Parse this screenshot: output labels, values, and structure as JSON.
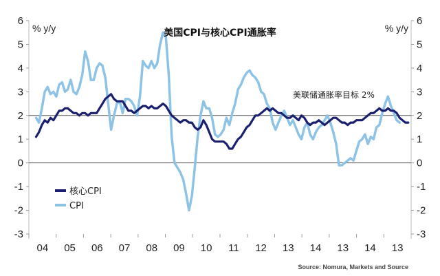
{
  "chart_data": {
    "type": "line",
    "title": "美国CPI与核心CPI通胀率",
    "unit_left": "% y/y",
    "unit_right": "% y/y",
    "ylim": [
      -3,
      6
    ],
    "y_ticks": [
      "6",
      "5",
      "4",
      "3",
      "2",
      "1",
      "0",
      "-1",
      "-2",
      "-3"
    ],
    "x_tick_labels": [
      "04",
      "05",
      "06",
      "07",
      "08",
      "09",
      "10",
      "11",
      "12",
      "13",
      "14",
      "13",
      "14",
      "13"
    ],
    "target_line": {
      "value": 2,
      "label": "美联储通胀率目标 2%"
    },
    "source": "Source: Nomura, Markets and Source",
    "legend": [
      {
        "name": "核心CPI",
        "color": "#1a1f6e"
      },
      {
        "name": "CPI",
        "color": "#8ec3e6"
      }
    ],
    "series": [
      {
        "name": "CPI",
        "color": "#8ec3e6",
        "points": [
          [
            2004.0,
            1.9
          ],
          [
            2004.1,
            1.7
          ],
          [
            2004.2,
            2.3
          ],
          [
            2004.3,
            3.0
          ],
          [
            2004.4,
            3.2
          ],
          [
            2004.5,
            2.9
          ],
          [
            2004.6,
            3.0
          ],
          [
            2004.7,
            2.8
          ],
          [
            2004.8,
            3.3
          ],
          [
            2004.9,
            3.4
          ],
          [
            2005.0,
            3.0
          ],
          [
            2005.1,
            3.1
          ],
          [
            2005.2,
            3.5
          ],
          [
            2005.3,
            3.0
          ],
          [
            2005.4,
            2.9
          ],
          [
            2005.5,
            3.2
          ],
          [
            2005.6,
            3.7
          ],
          [
            2005.7,
            4.7
          ],
          [
            2005.8,
            4.3
          ],
          [
            2005.9,
            3.5
          ],
          [
            2006.0,
            3.5
          ],
          [
            2006.1,
            4.0
          ],
          [
            2006.2,
            4.2
          ],
          [
            2006.3,
            4.1
          ],
          [
            2006.4,
            3.6
          ],
          [
            2006.5,
            2.5
          ],
          [
            2006.6,
            1.4
          ],
          [
            2006.7,
            2.0
          ],
          [
            2006.8,
            2.5
          ],
          [
            2006.9,
            2.6
          ],
          [
            2007.0,
            2.1
          ],
          [
            2007.1,
            2.7
          ],
          [
            2007.2,
            2.7
          ],
          [
            2007.3,
            2.6
          ],
          [
            2007.4,
            2.4
          ],
          [
            2007.5,
            2.0
          ],
          [
            2007.6,
            2.8
          ],
          [
            2007.7,
            4.3
          ],
          [
            2007.8,
            4.1
          ],
          [
            2007.9,
            4.0
          ],
          [
            2008.0,
            4.3
          ],
          [
            2008.1,
            4.0
          ],
          [
            2008.2,
            4.2
          ],
          [
            2008.3,
            5.0
          ],
          [
            2008.4,
            5.5
          ],
          [
            2008.5,
            5.3
          ],
          [
            2008.6,
            3.7
          ],
          [
            2008.7,
            1.1
          ],
          [
            2008.8,
            0.0
          ],
          [
            2008.9,
            -0.2
          ],
          [
            2009.0,
            -0.4
          ],
          [
            2009.1,
            -0.7
          ],
          [
            2009.2,
            -1.3
          ],
          [
            2009.3,
            -2.0
          ],
          [
            2009.4,
            -1.4
          ],
          [
            2009.5,
            -0.2
          ],
          [
            2009.6,
            1.1
          ],
          [
            2009.7,
            2.0
          ],
          [
            2009.8,
            2.6
          ],
          [
            2009.9,
            2.3
          ],
          [
            2010.0,
            2.3
          ],
          [
            2010.1,
            1.9
          ],
          [
            2010.2,
            1.2
          ],
          [
            2010.3,
            1.1
          ],
          [
            2010.4,
            1.2
          ],
          [
            2010.5,
            1.4
          ],
          [
            2010.6,
            1.9
          ],
          [
            2010.7,
            1.6
          ],
          [
            2010.8,
            2.1
          ],
          [
            2010.9,
            2.5
          ],
          [
            2011.0,
            3.1
          ],
          [
            2011.1,
            3.3
          ],
          [
            2011.2,
            3.6
          ],
          [
            2011.3,
            3.8
          ],
          [
            2011.4,
            3.9
          ],
          [
            2011.5,
            3.7
          ],
          [
            2011.6,
            3.6
          ],
          [
            2011.7,
            3.4
          ],
          [
            2011.8,
            3.0
          ],
          [
            2011.9,
            2.9
          ],
          [
            2012.0,
            2.5
          ],
          [
            2012.1,
            2.3
          ],
          [
            2012.2,
            1.7
          ],
          [
            2012.3,
            1.4
          ],
          [
            2012.4,
            1.7
          ],
          [
            2012.5,
            2.0
          ],
          [
            2012.6,
            2.2
          ],
          [
            2012.7,
            1.9
          ],
          [
            2012.8,
            1.6
          ],
          [
            2012.9,
            1.8
          ],
          [
            2013.0,
            1.5
          ],
          [
            2013.1,
            1.2
          ],
          [
            2013.2,
            1.0
          ],
          [
            2013.3,
            1.5
          ],
          [
            2013.4,
            1.7
          ],
          [
            2013.5,
            1.2
          ],
          [
            2013.6,
            1.0
          ],
          [
            2013.7,
            1.3
          ],
          [
            2013.8,
            1.5
          ],
          [
            2013.9,
            1.6
          ],
          [
            2014.0,
            1.8
          ],
          [
            2014.1,
            2.0
          ],
          [
            2014.2,
            1.7
          ],
          [
            2014.3,
            1.3
          ],
          [
            2014.4,
            0.8
          ],
          [
            2014.5,
            -0.1
          ],
          [
            2014.6,
            -0.1
          ],
          [
            2014.7,
            0.0
          ],
          [
            2014.8,
            0.1
          ],
          [
            2014.9,
            0.2
          ],
          [
            2015.0,
            0.1
          ],
          [
            2015.1,
            0.5
          ],
          [
            2015.2,
            0.9
          ],
          [
            2015.3,
            1.0
          ],
          [
            2015.4,
            1.2
          ],
          [
            2015.5,
            0.8
          ],
          [
            2015.6,
            1.1
          ],
          [
            2015.7,
            1.0
          ],
          [
            2015.8,
            1.5
          ],
          [
            2015.9,
            1.6
          ],
          [
            2016.0,
            2.1
          ],
          [
            2016.1,
            2.5
          ],
          [
            2016.2,
            2.8
          ],
          [
            2016.3,
            2.4
          ],
          [
            2016.4,
            2.1
          ],
          [
            2016.5,
            1.8
          ],
          [
            2016.6,
            1.7
          ]
        ]
      },
      {
        "name": "核心CPI",
        "color": "#1a1f6e",
        "points": [
          [
            2004.0,
            1.1
          ],
          [
            2004.1,
            1.3
          ],
          [
            2004.2,
            1.6
          ],
          [
            2004.3,
            1.8
          ],
          [
            2004.4,
            1.7
          ],
          [
            2004.5,
            1.9
          ],
          [
            2004.6,
            1.8
          ],
          [
            2004.7,
            2.0
          ],
          [
            2004.8,
            2.2
          ],
          [
            2004.9,
            2.2
          ],
          [
            2005.0,
            2.3
          ],
          [
            2005.1,
            2.3
          ],
          [
            2005.2,
            2.2
          ],
          [
            2005.3,
            2.1
          ],
          [
            2005.4,
            2.1
          ],
          [
            2005.5,
            2.0
          ],
          [
            2005.6,
            2.1
          ],
          [
            2005.7,
            2.1
          ],
          [
            2005.8,
            2.0
          ],
          [
            2005.9,
            2.1
          ],
          [
            2006.0,
            2.1
          ],
          [
            2006.1,
            2.1
          ],
          [
            2006.2,
            2.3
          ],
          [
            2006.3,
            2.5
          ],
          [
            2006.4,
            2.7
          ],
          [
            2006.5,
            2.8
          ],
          [
            2006.6,
            2.9
          ],
          [
            2006.7,
            2.7
          ],
          [
            2006.8,
            2.6
          ],
          [
            2006.9,
            2.6
          ],
          [
            2007.0,
            2.6
          ],
          [
            2007.1,
            2.4
          ],
          [
            2007.2,
            2.2
          ],
          [
            2007.3,
            2.2
          ],
          [
            2007.4,
            2.1
          ],
          [
            2007.5,
            2.2
          ],
          [
            2007.6,
            2.3
          ],
          [
            2007.7,
            2.4
          ],
          [
            2007.8,
            2.4
          ],
          [
            2007.9,
            2.3
          ],
          [
            2008.0,
            2.4
          ],
          [
            2008.1,
            2.3
          ],
          [
            2008.2,
            2.3
          ],
          [
            2008.3,
            2.4
          ],
          [
            2008.4,
            2.5
          ],
          [
            2008.5,
            2.4
          ],
          [
            2008.6,
            2.2
          ],
          [
            2008.7,
            2.0
          ],
          [
            2008.8,
            1.9
          ],
          [
            2008.9,
            1.8
          ],
          [
            2009.0,
            1.7
          ],
          [
            2009.1,
            1.8
          ],
          [
            2009.2,
            1.8
          ],
          [
            2009.3,
            1.7
          ],
          [
            2009.4,
            1.7
          ],
          [
            2009.5,
            1.5
          ],
          [
            2009.6,
            1.4
          ],
          [
            2009.7,
            1.5
          ],
          [
            2009.8,
            1.8
          ],
          [
            2009.9,
            1.6
          ],
          [
            2010.0,
            1.3
          ],
          [
            2010.1,
            1.0
          ],
          [
            2010.2,
            0.9
          ],
          [
            2010.3,
            0.9
          ],
          [
            2010.4,
            0.9
          ],
          [
            2010.5,
            0.9
          ],
          [
            2010.6,
            0.8
          ],
          [
            2010.7,
            0.6
          ],
          [
            2010.8,
            0.6
          ],
          [
            2010.9,
            0.8
          ],
          [
            2011.0,
            1.0
          ],
          [
            2011.1,
            1.1
          ],
          [
            2011.2,
            1.3
          ],
          [
            2011.3,
            1.5
          ],
          [
            2011.4,
            1.6
          ],
          [
            2011.5,
            1.8
          ],
          [
            2011.6,
            2.0
          ],
          [
            2011.7,
            2.0
          ],
          [
            2011.8,
            2.1
          ],
          [
            2011.9,
            2.2
          ],
          [
            2012.0,
            2.3
          ],
          [
            2012.1,
            2.2
          ],
          [
            2012.2,
            2.3
          ],
          [
            2012.3,
            2.2
          ],
          [
            2012.4,
            2.1
          ],
          [
            2012.5,
            2.1
          ],
          [
            2012.6,
            2.0
          ],
          [
            2012.7,
            1.9
          ],
          [
            2012.8,
            1.9
          ],
          [
            2012.9,
            2.0
          ],
          [
            2013.0,
            1.9
          ],
          [
            2013.1,
            1.8
          ],
          [
            2013.2,
            2.0
          ],
          [
            2013.3,
            1.9
          ],
          [
            2013.4,
            1.7
          ],
          [
            2013.5,
            1.6
          ],
          [
            2013.6,
            1.7
          ],
          [
            2013.7,
            1.7
          ],
          [
            2013.8,
            1.8
          ],
          [
            2013.9,
            1.7
          ],
          [
            2014.0,
            1.6
          ],
          [
            2014.1,
            1.7
          ],
          [
            2014.2,
            1.8
          ],
          [
            2014.3,
            1.9
          ],
          [
            2014.4,
            1.9
          ],
          [
            2014.5,
            1.8
          ],
          [
            2014.6,
            1.7
          ],
          [
            2014.7,
            1.7
          ],
          [
            2014.8,
            1.6
          ],
          [
            2014.9,
            1.7
          ],
          [
            2015.0,
            1.7
          ],
          [
            2015.1,
            1.8
          ],
          [
            2015.2,
            1.8
          ],
          [
            2015.3,
            1.8
          ],
          [
            2015.4,
            1.9
          ],
          [
            2015.5,
            2.0
          ],
          [
            2015.6,
            2.1
          ],
          [
            2015.7,
            2.1
          ],
          [
            2015.8,
            2.2
          ],
          [
            2015.9,
            2.3
          ],
          [
            2016.0,
            2.2
          ],
          [
            2016.1,
            2.2
          ],
          [
            2016.2,
            2.3
          ],
          [
            2016.3,
            2.2
          ],
          [
            2016.4,
            2.2
          ],
          [
            2016.5,
            2.1
          ],
          [
            2016.6,
            1.9
          ],
          [
            2016.7,
            1.8
          ],
          [
            2016.8,
            1.7
          ],
          [
            2016.9,
            1.7
          ]
        ]
      }
    ]
  }
}
